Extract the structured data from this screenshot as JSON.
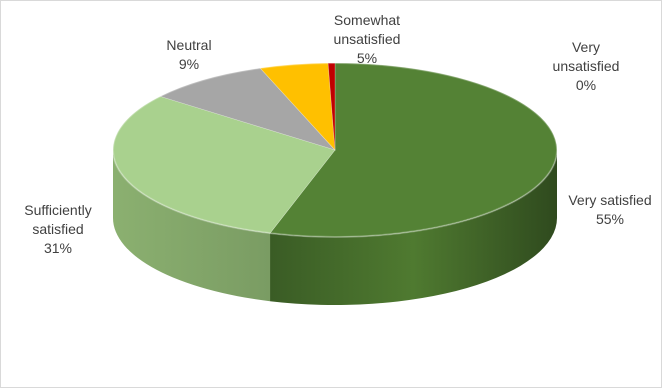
{
  "chart_data": {
    "type": "pie",
    "title": "",
    "slices": [
      {
        "label_lines": [
          "Very satisfied"
        ],
        "value": 55,
        "value_label": "55%",
        "color": "#548235"
      },
      {
        "label_lines": [
          "Sufficiently",
          "satisfied"
        ],
        "value": 31,
        "value_label": "31%",
        "color": "#a9d18e"
      },
      {
        "label_lines": [
          "Neutral"
        ],
        "value": 9,
        "value_label": "9%",
        "color": "#a6a6a6"
      },
      {
        "label_lines": [
          "Somewhat",
          "unsatisfied"
        ],
        "value": 5,
        "value_label": "5%",
        "color": "#ffc000"
      },
      {
        "label_lines": [
          "Very",
          "unsatisfied"
        ],
        "value": 0.5,
        "value_label": "0%",
        "color": "#c00000"
      }
    ],
    "style": "3d-pie",
    "legend": "none"
  }
}
